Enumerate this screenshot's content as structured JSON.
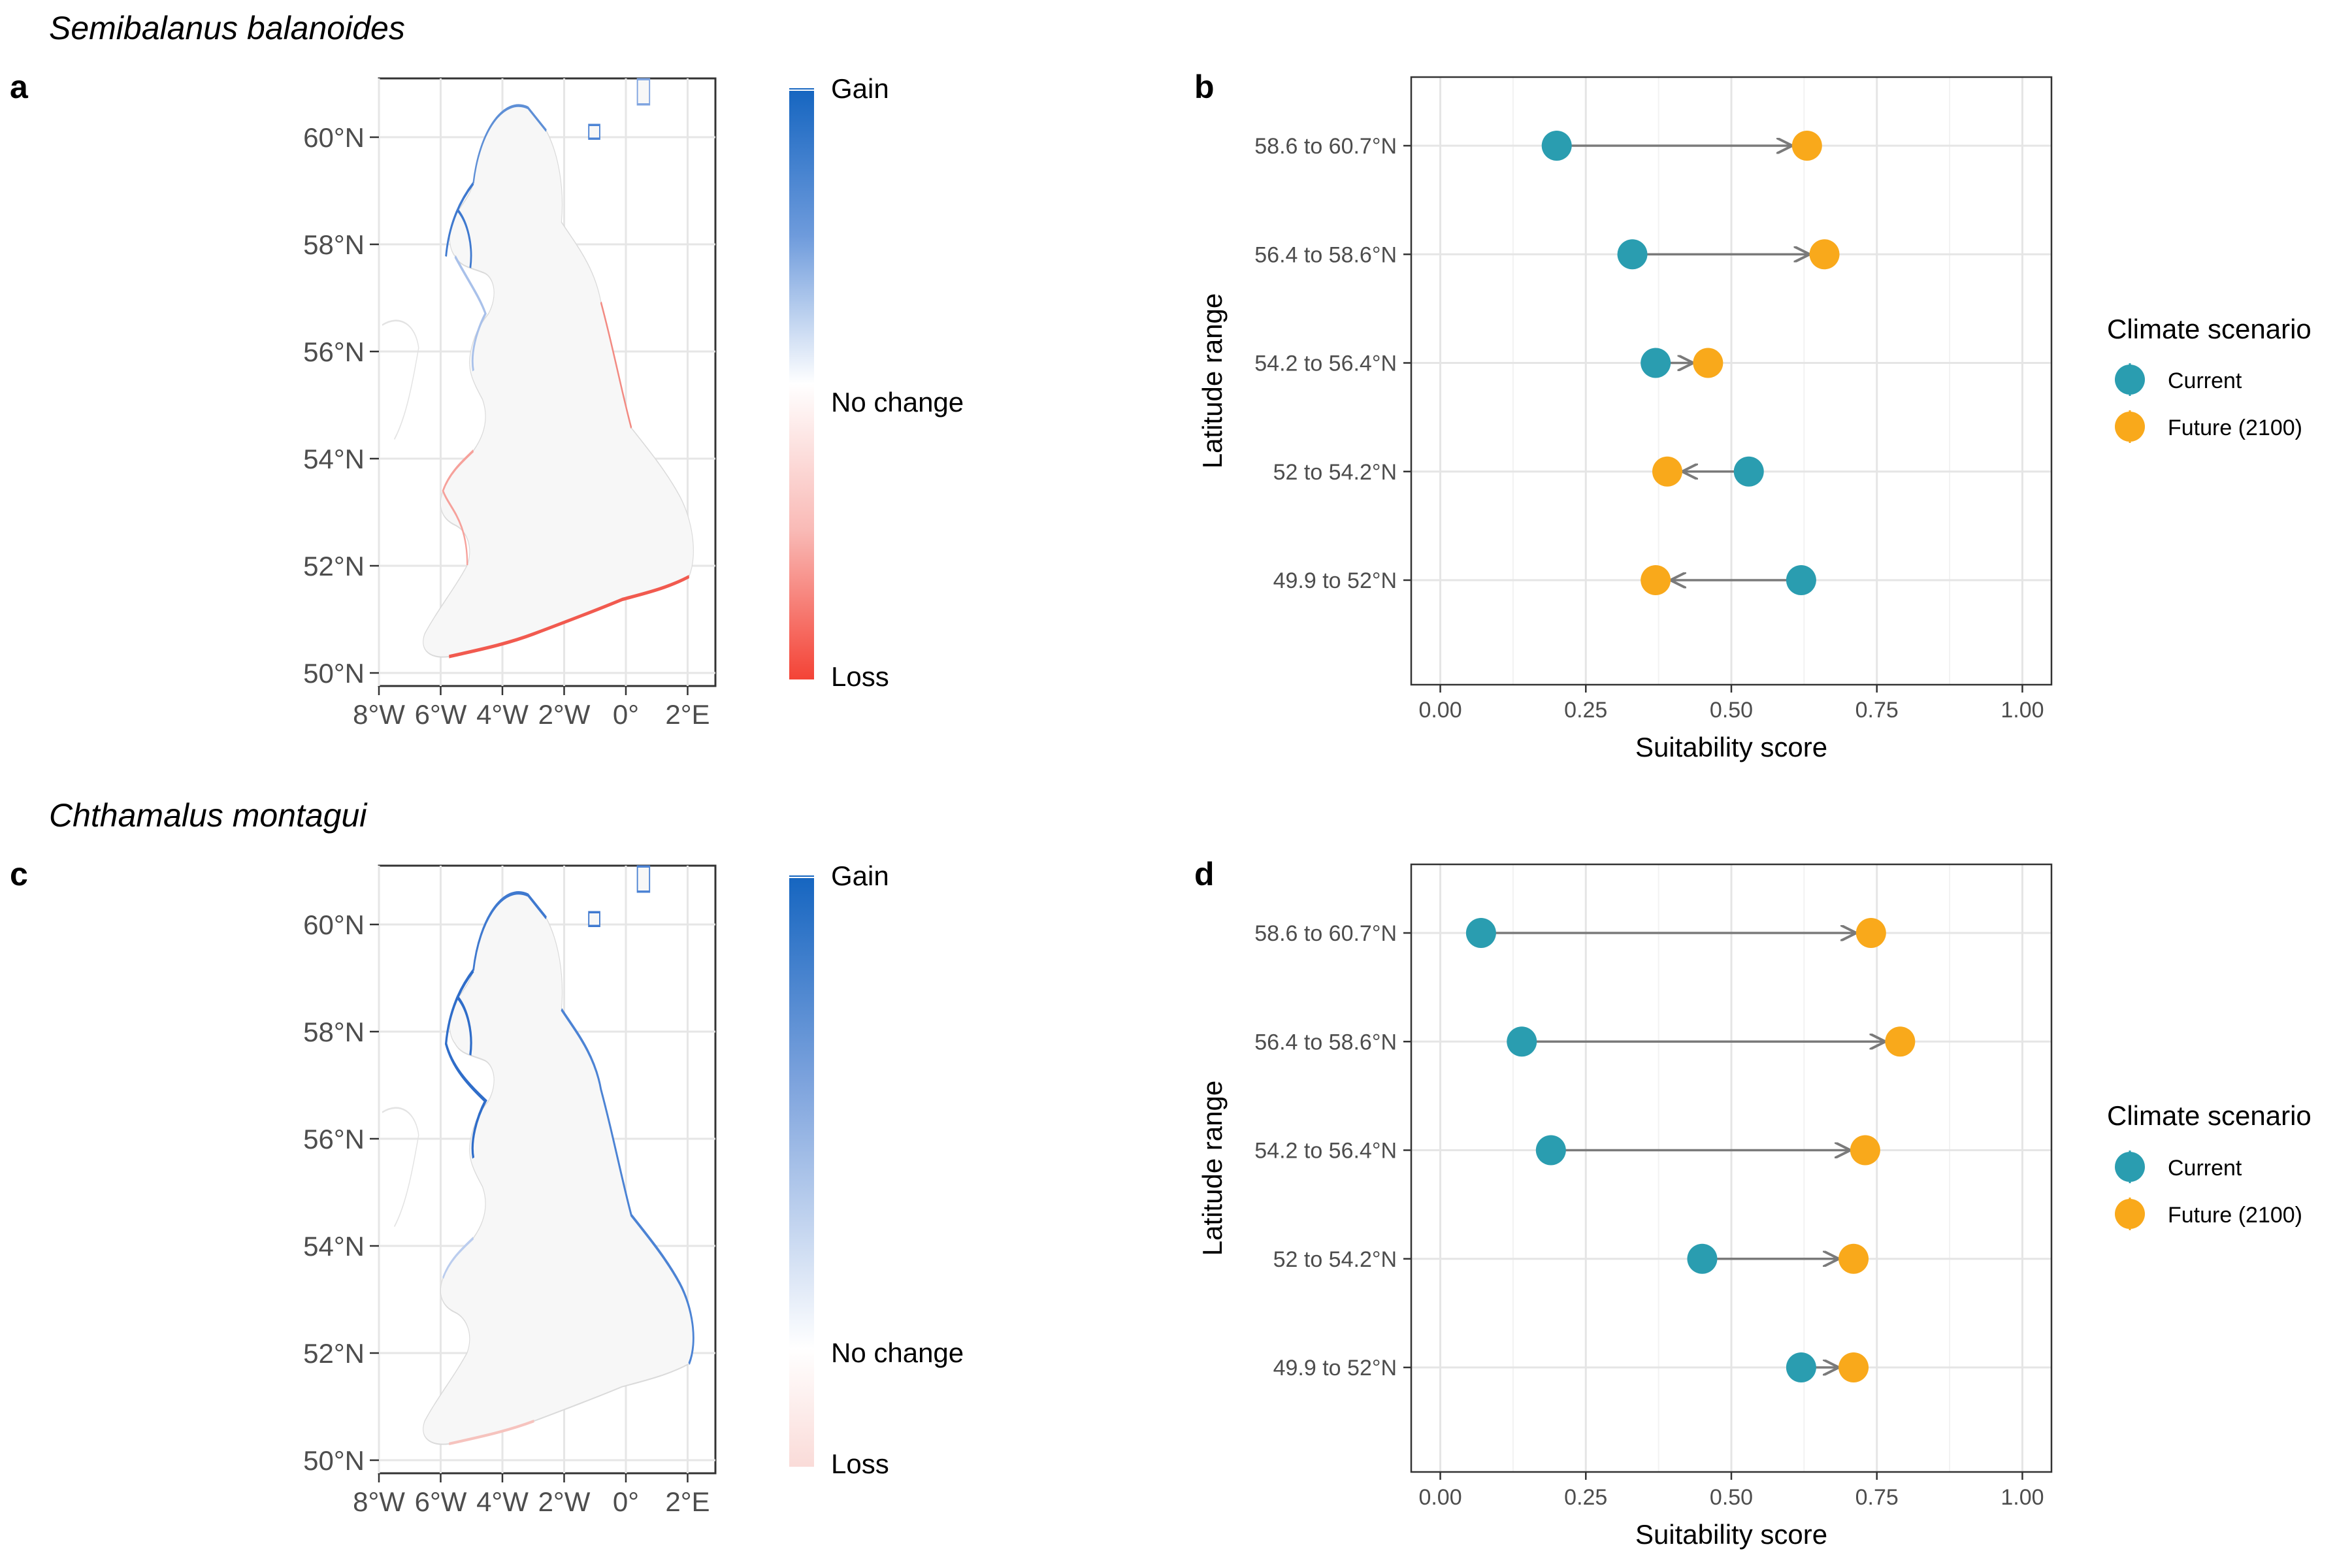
{
  "figure": {
    "sections": [
      {
        "species": "Semibalanus balanoides",
        "map_label": "a",
        "chart_label": "b"
      },
      {
        "species": "Chthamalus montagui",
        "map_label": "c",
        "chart_label": "d"
      }
    ],
    "map": {
      "y_ticks": [
        "50°N",
        "52°N",
        "54°N",
        "56°N",
        "58°N",
        "60°N"
      ],
      "y_tick_values": [
        50,
        52,
        54,
        56,
        58,
        60
      ],
      "x_ticks": [
        "8°W",
        "6°W",
        "4°W",
        "2°W",
        "0°",
        "2°E"
      ],
      "x_tick_values": [
        -8,
        -6,
        -4,
        -2,
        0,
        2
      ],
      "legend": {
        "top": "Gain",
        "middle": "No change",
        "bottom": "Loss"
      },
      "colors": {
        "gain": "#1565C0",
        "neutral": "#ffffff",
        "loss": "#F44336",
        "land": "#F7F7F7",
        "outline": "#DADADA"
      }
    },
    "legend": {
      "title": "Climate scenario",
      "items": [
        {
          "label": "Current",
          "color": "#2A9DB0"
        },
        {
          "label": "Future (2100)",
          "color": "#F9A91B"
        }
      ]
    }
  },
  "chart_data": [
    {
      "type": "scatter",
      "subtype": "dumbbell",
      "panel": "b",
      "xlabel": "Suitability score",
      "ylabel": "Latitude range",
      "xlim": [
        -0.05,
        1.05
      ],
      "x_ticks": [
        "0.00",
        "0.25",
        "0.50",
        "0.75",
        "1.00"
      ],
      "x_tick_values": [
        0,
        0.25,
        0.5,
        0.75,
        1.0
      ],
      "categories": [
        "58.6 to 60.7°N",
        "56.4 to 58.6°N",
        "54.2 to 56.4°N",
        "52 to 54.2°N",
        "49.9 to 52°N"
      ],
      "series": [
        {
          "name": "Current",
          "values": [
            0.2,
            0.33,
            0.37,
            0.53,
            0.62
          ]
        },
        {
          "name": "Future (2100)",
          "values": [
            0.63,
            0.66,
            0.46,
            0.39,
            0.37
          ]
        }
      ],
      "grid": true,
      "legend": "right"
    },
    {
      "type": "scatter",
      "subtype": "dumbbell",
      "panel": "d",
      "xlabel": "Suitability score",
      "ylabel": "Latitude range",
      "xlim": [
        -0.05,
        1.05
      ],
      "x_ticks": [
        "0.00",
        "0.25",
        "0.50",
        "0.75",
        "1.00"
      ],
      "x_tick_values": [
        0,
        0.25,
        0.5,
        0.75,
        1.0
      ],
      "categories": [
        "58.6 to 60.7°N",
        "56.4 to 58.6°N",
        "54.2 to 56.4°N",
        "52 to 54.2°N",
        "49.9 to 52°N"
      ],
      "series": [
        {
          "name": "Current",
          "values": [
            0.07,
            0.14,
            0.19,
            0.45,
            0.62
          ]
        },
        {
          "name": "Future (2100)",
          "values": [
            0.74,
            0.79,
            0.73,
            0.71,
            0.71
          ]
        }
      ],
      "grid": true,
      "legend": "right"
    }
  ]
}
